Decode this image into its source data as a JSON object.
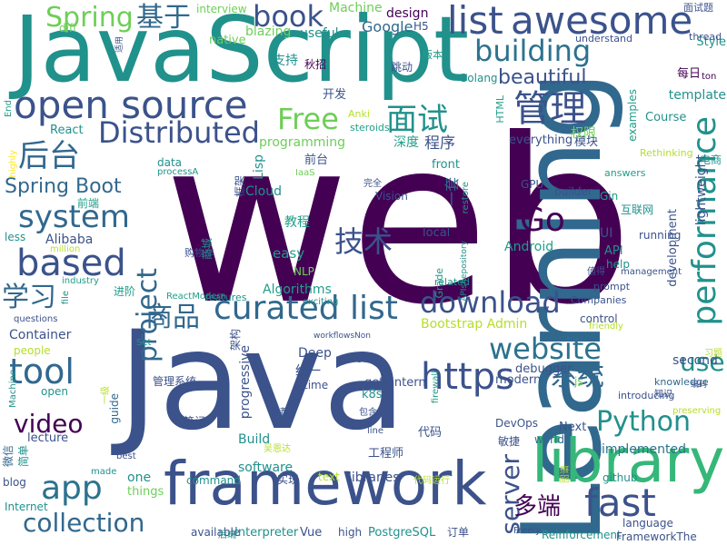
{
  "palette": {
    "deep_purple": "#440154",
    "indigo": "#3b528b",
    "blue": "#31688e",
    "slate": "#2c728e",
    "teal": "#21918c",
    "sea": "#1f9e89",
    "green": "#35b779",
    "lime": "#6ece58",
    "yellow_green": "#b5de2b",
    "yellow": "#fde725"
  },
  "words": [
    "web",
    "Java",
    "JavaScript",
    "Learning",
    "framework",
    "library",
    "list",
    "awesome",
    "open source",
    "building",
    "curated list",
    "download",
    "https",
    "performance",
    "website",
    "Python",
    "server",
    "fast",
    "tool",
    "project",
    "app",
    "collection",
    "based",
    "system",
    "Go",
    "book",
    "Spring",
    "管理",
    "基于",
    "面试",
    "Free",
    "后台",
    "Distributed",
    "技术",
    "学习",
    "商品",
    "系统",
    "多端",
    "video",
    "use",
    "beautiful",
    "Spring Boot",
    "Google",
    "Machine",
    "design",
    "interview",
    "blazing",
    "useful",
    "native",
    "diff",
    "支持",
    "秋招",
    "跳动",
    "版本",
    "Golang",
    "开发",
    "template",
    "每日",
    "ton",
    "Style",
    "thread",
    "understand",
    "H5",
    "面试题",
    "End",
    "highly",
    "lightweight",
    "React",
    "Anki",
    "steroids",
    "programming",
    "深度",
    "程序",
    "模块",
    "权限",
    "Rethinking",
    "everything",
    "HTML",
    "examples",
    "Course",
    "Lisp",
    "Cloud",
    "框架",
    "前台",
    "data",
    "processA",
    "IaaS",
    "完全",
    "front",
    "restore",
    "answers",
    "电商",
    "GPU",
    "Gin",
    "互联网",
    "Vision",
    "builder",
    "前端",
    "less",
    "Alibaba",
    "million",
    "教程",
    "easy",
    "local",
    "一套",
    "UI",
    "running",
    "API",
    "Android",
    "development",
    "购物车",
    "商城",
    "NLP",
    "related",
    "Grade",
    "APIsRepository",
    "help",
    "值得",
    "management",
    "prompt",
    "Companies",
    "industry",
    "进阶",
    "file",
    "Algorithms",
    "features",
    "ReactModern",
    "exciting",
    "questions",
    "Container",
    "workflowsNon",
    "control",
    "Bootstrap Admin",
    "friendly",
    "people",
    "架构",
    "Deep",
    "Set",
    "iOS",
    "second",
    "习题",
    "Machine",
    "time",
    "统一",
    "js",
    "管理系统",
    "getlantern",
    "debugger",
    "modern",
    "knowledge",
    "firewall",
    "k8s",
    "open",
    "一级",
    "progressive",
    "introducing",
    "preserving",
    "lecture",
    "guide",
    "推荐",
    "包含",
    "笔记",
    "DevOps",
    "Next",
    "line",
    "Build",
    "代码",
    "敏捷",
    "world",
    "微信",
    "简单",
    "吴恩达",
    "software",
    "工程师",
    "implemented",
    "blog",
    "made",
    "best",
    "one",
    "things",
    "command",
    "实现",
    "text",
    "libraries",
    "代码运行",
    "github",
    "图谱",
    "Internet",
    "available",
    "后端",
    "Interpreter",
    "Vue",
    "high",
    "PostgreSQL",
    "订单",
    "Freely",
    "Reinforcement",
    "language",
    "FrameworkThe",
    "知识",
    "适用",
    "编码"
  ]
}
